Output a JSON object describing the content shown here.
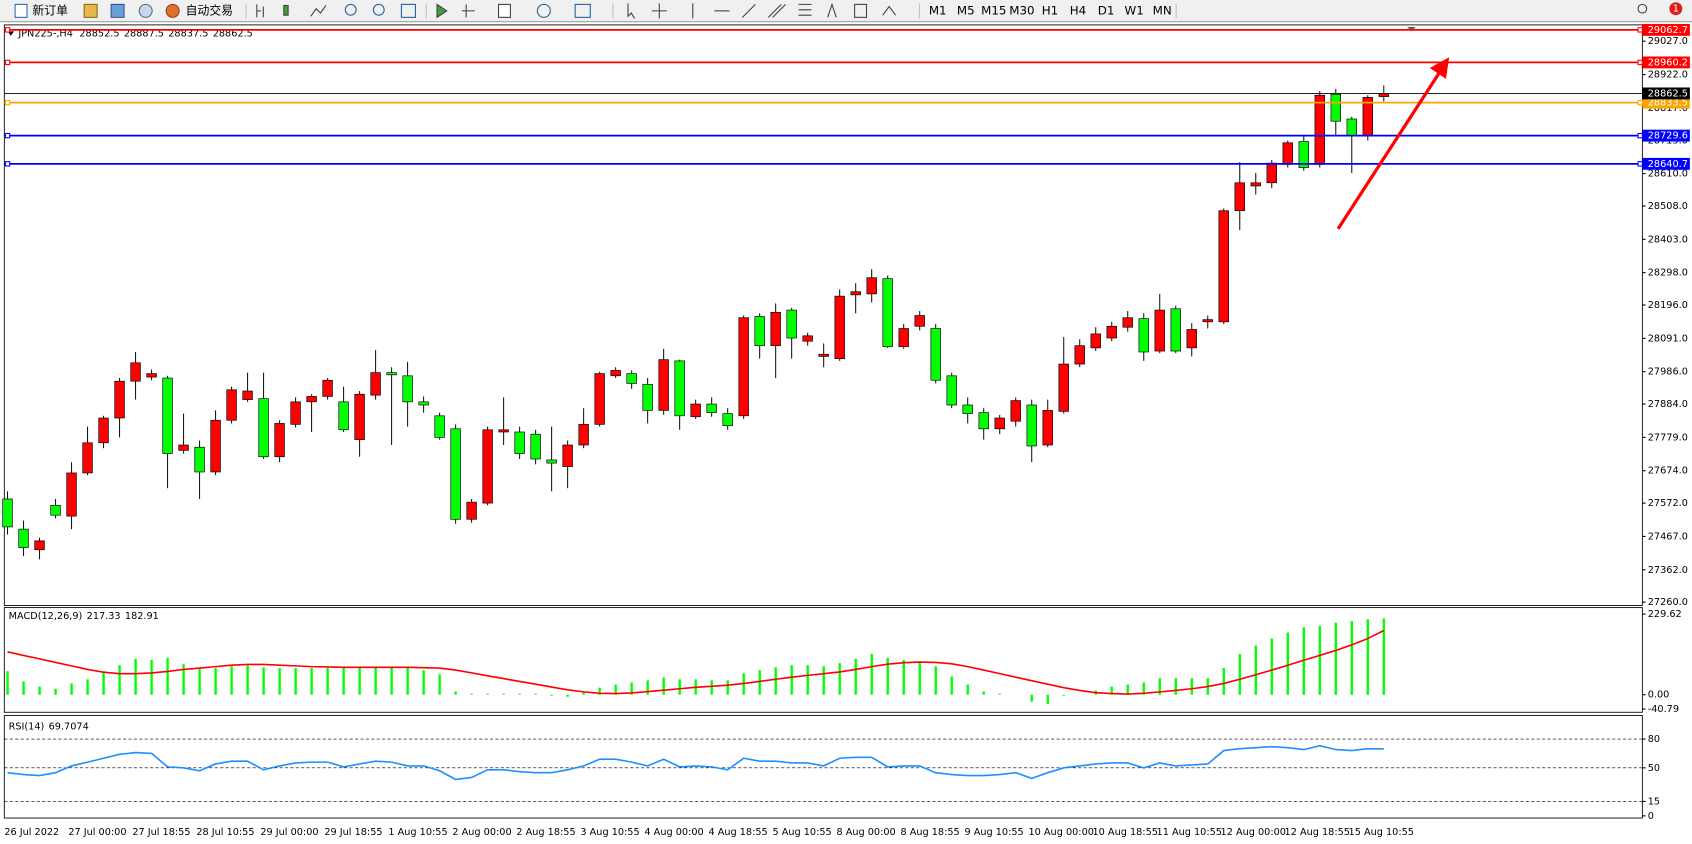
{
  "toolbar": {
    "new_order": "新订单",
    "auto_trading": "自动交易",
    "timeframes": [
      "M1",
      "M5",
      "M15",
      "M30",
      "H1",
      "H4",
      "D1",
      "W1",
      "MN"
    ],
    "alerts": "1"
  },
  "chart_data": [
    {
      "type": "candlestick",
      "title": "JPN225-,H4",
      "categories": [
        "26 Jul 2022",
        null,
        null,
        null,
        "27 Jul 00:00",
        null,
        null,
        null,
        "27 Jul 18:55",
        null,
        null,
        null,
        "28 Jul 10:55",
        null,
        null,
        null,
        "29 Jul 00:00",
        null,
        null,
        null,
        "29 Jul 18:55",
        null,
        null,
        null,
        "1 Aug 10:55",
        null,
        null,
        null,
        "2 Aug 00:00",
        null,
        null,
        null,
        "2 Aug 18:55",
        null,
        null,
        null,
        "3 Aug 10:55",
        null,
        null,
        null,
        "4 Aug 00:00",
        null,
        null,
        null,
        "4 Aug 18:55",
        null,
        null,
        null,
        "5 Aug 10:55",
        null,
        null,
        null,
        "8 Aug 00:00",
        null,
        null,
        null,
        "8 Aug 18:55",
        null,
        null,
        null,
        "9 Aug 10:55",
        null,
        null,
        null,
        "10 Aug 00:00",
        null,
        null,
        null,
        "10 Aug 18:55",
        null,
        null,
        null,
        "11 Aug 10:55",
        null,
        null,
        null,
        "12 Aug 00:00",
        null,
        null,
        null,
        "12 Aug 18:55",
        null,
        null,
        null,
        "15 Aug 10:55",
        null,
        null
      ],
      "open": [
        27585,
        27490,
        27425,
        27565,
        27531,
        27667,
        27762,
        27840,
        27956,
        27969,
        27966,
        27738,
        27748,
        27670,
        27833,
        27898,
        27901,
        27718,
        27820,
        27891,
        27908,
        27891,
        27772,
        27912,
        27983,
        27973,
        27891,
        27847,
        27806,
        27521,
        27572,
        27796,
        27796,
        27789,
        27708,
        27687,
        27755,
        27820,
        27973,
        27980,
        27946,
        27864,
        28020,
        27844,
        27884,
        27854,
        27847,
        28160,
        28068,
        28180,
        28082,
        28034,
        28027,
        28228,
        28231,
        28279,
        28065,
        28129,
        28122,
        27973,
        27881,
        27857,
        27806,
        27830,
        27881,
        27755,
        27861,
        28010,
        28061,
        28092,
        28126,
        28153,
        28051,
        28184,
        28061,
        28143,
        28143,
        28493,
        28571,
        28581,
        28639,
        28711,
        28639,
        28860,
        28782,
        28731,
        28852.5
      ],
      "high": [
        27609,
        27517,
        27463,
        27585,
        27701,
        27813,
        27847,
        27966,
        28048,
        27993,
        27973,
        27854,
        27769,
        27864,
        27939,
        27983,
        27983,
        27833,
        27905,
        27915,
        27966,
        27939,
        27925,
        28054,
        28000,
        28017,
        27908,
        27857,
        27820,
        27585,
        27813,
        27905,
        27813,
        27803,
        27813,
        27769,
        27871,
        27986,
        28000,
        27990,
        27966,
        28058,
        28024,
        27898,
        27905,
        27871,
        28163,
        28170,
        28201,
        28187,
        28109,
        28075,
        28245,
        28265,
        28309,
        28289,
        28136,
        28177,
        28136,
        27983,
        27905,
        27871,
        27850,
        27905,
        27898,
        27898,
        28095,
        28088,
        28126,
        28143,
        28177,
        28170,
        28231,
        28194,
        28139,
        28163,
        28500,
        28646,
        28612,
        28653,
        28714,
        28731,
        28870,
        28877,
        28789,
        28857,
        28887.5
      ],
      "low": [
        27473,
        27405,
        27395,
        27524,
        27490,
        27660,
        27745,
        27779,
        27898,
        27959,
        27619,
        27728,
        27585,
        27660,
        27823,
        27891,
        27711,
        27701,
        27810,
        27796,
        27898,
        27796,
        27718,
        27898,
        27755,
        27813,
        27857,
        27772,
        27507,
        27510,
        27565,
        27755,
        27711,
        27694,
        27609,
        27619,
        27745,
        27813,
        27966,
        27932,
        27823,
        27850,
        27803,
        27837,
        27844,
        27803,
        27837,
        28027,
        27966,
        28027,
        28068,
        28000,
        28020,
        28170,
        28204,
        28061,
        28058,
        28116,
        27949,
        27871,
        27823,
        27772,
        27789,
        27813,
        27701,
        27748,
        27854,
        28000,
        28051,
        28082,
        28112,
        28020,
        28044,
        28044,
        28034,
        28122,
        28136,
        28432,
        28544,
        28564,
        28629,
        28619,
        28629,
        28731,
        28612,
        28714,
        28837.5
      ],
      "close": [
        27497,
        27432,
        27453,
        27534,
        27667,
        27762,
        27840,
        27956,
        28014,
        27980,
        27728,
        27755,
        27670,
        27833,
        27929,
        27925,
        27718,
        27823,
        27891,
        27908,
        27959,
        27803,
        27915,
        27983,
        27976,
        27891,
        27881,
        27779,
        27521,
        27575,
        27803,
        27803,
        27728,
        27711,
        27698,
        27755,
        27820,
        27980,
        27990,
        27949,
        27864,
        28024,
        27847,
        27884,
        27857,
        27816,
        28156,
        28068,
        28173,
        28092,
        28099,
        28041,
        28224,
        28238,
        28282,
        28065,
        28122,
        28163,
        27959,
        27881,
        27854,
        27806,
        27840,
        27895,
        27752,
        27864,
        28010,
        28068,
        28105,
        28129,
        28156,
        28048,
        28180,
        28051,
        28119,
        28150,
        28493,
        28581,
        28581,
        28643,
        28707,
        28629,
        28857,
        28775,
        28728,
        28850,
        28862.5
      ],
      "up_color": "#ff0000",
      "down_color": "#00ff00",
      "outline_color": "#000000",
      "price_line_color": "#000000",
      "ylim": [
        27253,
        29075
      ],
      "yticks": [
        {
          "value": 29027,
          "label": "29027.0"
        },
        {
          "value": 28922,
          "label": "28922.0"
        },
        {
          "value": 28817,
          "label": "28817.0"
        },
        {
          "value": 28715,
          "label": "28715.0"
        },
        {
          "value": 28610,
          "label": "28610.0"
        },
        {
          "value": 28508,
          "label": "28508.0"
        },
        {
          "value": 28403,
          "label": "28403.0"
        },
        {
          "value": 28298,
          "label": "28298.0"
        },
        {
          "value": 28196,
          "label": "28196.0"
        },
        {
          "value": 28091,
          "label": "28091.0"
        },
        {
          "value": 27986,
          "label": "27986.0"
        },
        {
          "value": 27884,
          "label": "27884.0"
        },
        {
          "value": 27779,
          "label": "27779.0"
        },
        {
          "value": 27674,
          "label": "27674.0"
        },
        {
          "value": 27572,
          "label": "27572.0"
        },
        {
          "value": 27467,
          "label": "27467.0"
        },
        {
          "value": 27362,
          "label": "27362.0"
        },
        {
          "value": 27260,
          "label": "27260.0"
        }
      ],
      "hlines": [
        {
          "value": 29062.7,
          "color": "#ff0000"
        },
        {
          "value": 28960.2,
          "color": "#ff0000"
        },
        {
          "value": 28833.5,
          "color": "#ffa500"
        },
        {
          "value": 28729.6,
          "color": "#0000ff"
        },
        {
          "value": 28640.7,
          "color": "#0000ff"
        }
      ]
    },
    {
      "type": "macd",
      "title": "MACD(12,26,9)",
      "histogram": {
        "color": "#00ff00",
        "values": [
          67,
          38,
          23,
          17,
          32,
          44,
          67,
          84,
          102,
          99,
          105,
          87,
          76,
          76,
          81,
          84,
          78,
          76,
          76,
          76,
          76,
          76,
          76,
          78,
          78,
          76,
          70,
          58,
          9,
          3,
          3,
          3,
          3,
          3,
          -3,
          -6,
          6,
          20,
          29,
          35,
          41,
          49,
          44,
          44,
          41,
          41,
          61,
          70,
          78,
          84,
          84,
          81,
          90,
          102,
          116,
          105,
          99,
          93,
          81,
          52,
          29,
          9,
          3,
          0,
          -20,
          -26,
          -3,
          0,
          12,
          23,
          29,
          35,
          47,
          47,
          47,
          47,
          76,
          116,
          140,
          160,
          177,
          192,
          196,
          205,
          210,
          215,
          217.33
        ]
      },
      "signal": {
        "color": "#ff0000",
        "values": [
          122,
          112,
          102,
          92,
          82,
          72,
          64,
          60,
          60,
          62,
          66,
          72,
          76,
          80,
          84,
          86,
          86,
          84,
          82,
          80,
          79,
          78,
          78,
          78,
          78,
          78,
          77,
          76,
          70,
          62,
          54,
          46,
          38,
          30,
          22,
          14,
          8,
          4,
          3,
          5,
          9,
          13,
          17,
          21,
          24,
          27,
          32,
          38,
          44,
          50,
          55,
          60,
          65,
          72,
          80,
          87,
          91,
          93,
          92,
          88,
          80,
          70,
          60,
          50,
          40,
          30,
          20,
          12,
          6,
          3,
          2,
          4,
          8,
          12,
          17,
          23,
          32,
          44,
          57,
          70,
          84,
          98,
          112,
          126,
          142,
          160,
          182.91
        ]
      },
      "ylim": [
        -40.79,
        229.62
      ],
      "yticks": [
        229.62,
        {
          "value": 0,
          "label": "0.00"
        },
        -40.79
      ]
    },
    {
      "type": "line",
      "title": "RSI(14)",
      "color": "#1e90ff",
      "values": [
        45,
        43,
        42,
        45,
        52,
        56,
        60,
        64,
        66,
        65,
        51,
        50,
        47,
        54,
        57,
        57,
        48,
        52,
        55,
        56,
        56,
        51,
        54,
        57,
        56,
        52,
        52,
        47,
        38,
        40,
        48,
        48,
        46,
        45,
        45,
        48,
        52,
        59,
        59,
        56,
        52,
        59,
        51,
        52,
        51,
        48,
        60,
        57,
        57,
        55,
        55,
        52,
        60,
        61,
        61,
        51,
        52,
        52,
        45,
        43,
        42,
        42,
        43,
        45,
        39,
        45,
        50,
        52,
        54,
        55,
        55,
        50,
        55,
        52,
        53,
        54,
        68,
        70,
        71,
        72,
        71,
        69,
        73,
        69,
        68,
        70,
        69.7074
      ],
      "ylim": [
        0,
        100
      ],
      "yticks": [
        80,
        50,
        15,
        0
      ],
      "level_lines": "dashed"
    }
  ]
}
